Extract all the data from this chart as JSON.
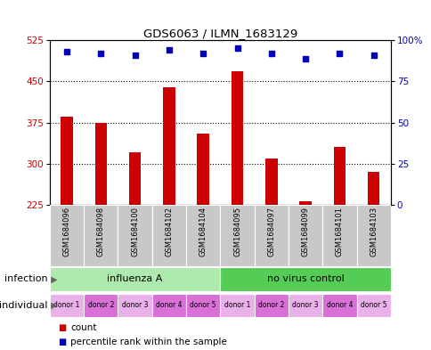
{
  "title": "GDS6063 / ILMN_1683129",
  "samples": [
    "GSM1684096",
    "GSM1684098",
    "GSM1684100",
    "GSM1684102",
    "GSM1684104",
    "GSM1684095",
    "GSM1684097",
    "GSM1684099",
    "GSM1684101",
    "GSM1684103"
  ],
  "counts": [
    385,
    375,
    320,
    440,
    355,
    468,
    310,
    232,
    330,
    285
  ],
  "percentile_ranks": [
    93,
    92,
    91,
    94,
    92,
    95,
    92,
    89,
    92,
    91
  ],
  "ylim_left": [
    225,
    525
  ],
  "ylim_right": [
    0,
    100
  ],
  "yticks_left": [
    225,
    300,
    375,
    450,
    525
  ],
  "yticks_right": [
    0,
    25,
    50,
    75,
    100
  ],
  "ytick_labels_right": [
    "0",
    "25",
    "50",
    "75",
    "100%"
  ],
  "infection_groups": [
    {
      "label": "influenza A",
      "start": 0,
      "end": 5,
      "color": "#AEEAAE"
    },
    {
      "label": "no virus control",
      "start": 5,
      "end": 10,
      "color": "#55CC55"
    }
  ],
  "individuals": [
    "donor 1",
    "donor 2",
    "donor 3",
    "donor 4",
    "donor 5",
    "donor 1",
    "donor 2",
    "donor 3",
    "donor 4",
    "donor 5"
  ],
  "individual_colors": [
    "#EAB0EA",
    "#D870D8",
    "#EAB0EA",
    "#D870D8",
    "#D870D8",
    "#EAB0EA",
    "#D870D8",
    "#EAB0EA",
    "#D870D8",
    "#EAB0EA"
  ],
  "bar_color": "#CC0000",
  "dot_color": "#0000BB",
  "bar_baseline": 225,
  "tick_label_color_left": "#CC0000",
  "tick_label_color_right": "#0000BB",
  "grid_color": "#000000",
  "sample_bg_color": "#C8C8C8",
  "legend_count_color": "#CC0000",
  "legend_dot_color": "#0000BB"
}
